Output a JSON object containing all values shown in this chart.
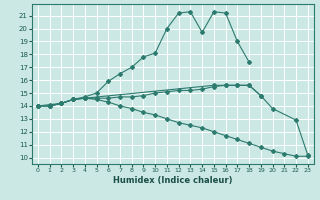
{
  "xlabel": "Humidex (Indice chaleur)",
  "bg_color": "#cbe8e4",
  "grid_color": "#ffffff",
  "line_color": "#2d7a6e",
  "xlim": [
    -0.5,
    23.5
  ],
  "ylim": [
    9.5,
    21.9
  ],
  "line_main_x": [
    0,
    1,
    2,
    3,
    4,
    5,
    6,
    7,
    8,
    9,
    10,
    11,
    12,
    13,
    14,
    15,
    16,
    17,
    18
  ],
  "line_main_y": [
    14,
    14,
    14.2,
    14.5,
    14.7,
    15.0,
    15.9,
    16.5,
    17.0,
    17.8,
    18.1,
    20.0,
    21.2,
    21.3,
    19.7,
    21.3,
    21.2,
    19.0,
    17.4
  ],
  "line_flat_x": [
    0,
    1,
    2,
    3,
    4,
    5,
    6,
    7,
    8,
    9,
    10,
    11,
    12,
    13,
    14,
    15,
    16,
    17,
    18,
    19
  ],
  "line_flat_y": [
    14,
    14.1,
    14.2,
    14.5,
    14.6,
    14.6,
    14.6,
    14.7,
    14.7,
    14.8,
    15.0,
    15.1,
    15.2,
    15.2,
    15.3,
    15.5,
    15.6,
    15.6,
    15.6,
    14.8
  ],
  "line_step_x": [
    0,
    1,
    2,
    3,
    4,
    15,
    16,
    17,
    18,
    19,
    20,
    22,
    23
  ],
  "line_step_y": [
    14,
    14,
    14.2,
    14.5,
    14.6,
    15.6,
    15.6,
    15.6,
    15.6,
    14.8,
    13.8,
    12.9,
    10.2
  ],
  "line_decline_x": [
    0,
    1,
    2,
    3,
    4,
    5,
    6,
    7,
    8,
    9,
    10,
    11,
    12,
    13,
    14,
    15,
    16,
    17,
    18,
    19,
    20,
    21,
    22,
    23
  ],
  "line_decline_y": [
    14,
    14,
    14.2,
    14.5,
    14.6,
    14.5,
    14.3,
    14.0,
    13.8,
    13.5,
    13.3,
    13.0,
    12.7,
    12.5,
    12.3,
    12.0,
    11.7,
    11.4,
    11.1,
    10.8,
    10.5,
    10.3,
    10.1,
    10.1
  ]
}
